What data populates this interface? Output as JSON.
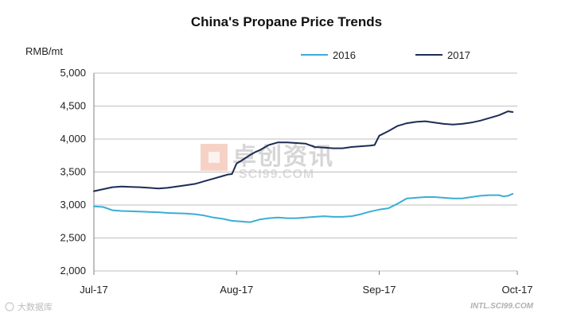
{
  "chart_data": {
    "type": "line",
    "title": "China's Propane Price Trends",
    "ylabel": "RMB/mt",
    "xlabel": "",
    "ylim": [
      2000,
      5000
    ],
    "yticks": [
      "2,000",
      "2,500",
      "3,000",
      "3,500",
      "4,000",
      "4,500",
      "5,000"
    ],
    "ytick_values": [
      2000,
      2500,
      3000,
      3500,
      4000,
      4500,
      5000
    ],
    "xticks": [
      "Jul-17",
      "Aug-17",
      "Sep-17",
      "Oct-17"
    ],
    "xtick_values": [
      0,
      31,
      62,
      92
    ],
    "xlim": [
      0,
      92
    ],
    "legend_position": "top",
    "grid": "horizontal",
    "series": [
      {
        "name": "2016",
        "color": "#3aaed6",
        "x": [
          0,
          2,
          4,
          6,
          8,
          10,
          12,
          14,
          16,
          18,
          20,
          22,
          24,
          26,
          28,
          30,
          32,
          34,
          36,
          38,
          40,
          42,
          44,
          46,
          48,
          50,
          52,
          54,
          56,
          58,
          60,
          62,
          64,
          66,
          68,
          70,
          72,
          74,
          76,
          78,
          80,
          82,
          84,
          86,
          88,
          89,
          90,
          91
        ],
        "values": [
          2980,
          2970,
          2920,
          2910,
          2905,
          2900,
          2895,
          2890,
          2880,
          2875,
          2870,
          2860,
          2840,
          2810,
          2790,
          2760,
          2750,
          2740,
          2780,
          2800,
          2810,
          2800,
          2800,
          2810,
          2820,
          2830,
          2820,
          2820,
          2830,
          2860,
          2900,
          2930,
          2950,
          3020,
          3100,
          3110,
          3120,
          3120,
          3110,
          3100,
          3100,
          3120,
          3140,
          3150,
          3150,
          3130,
          3140,
          3170
        ]
      },
      {
        "name": "2017",
        "color": "#1d2c53",
        "x": [
          0,
          2,
          4,
          6,
          8,
          10,
          12,
          14,
          16,
          18,
          20,
          22,
          24,
          26,
          28,
          29,
          30,
          31,
          32,
          34,
          35,
          36,
          38,
          40,
          42,
          44,
          46,
          48,
          50,
          52,
          54,
          56,
          58,
          60,
          61,
          62,
          64,
          66,
          68,
          70,
          72,
          74,
          76,
          78,
          80,
          82,
          84,
          86,
          88,
          90,
          91
        ],
        "values": [
          3210,
          3240,
          3270,
          3280,
          3275,
          3270,
          3260,
          3250,
          3260,
          3280,
          3300,
          3320,
          3360,
          3400,
          3440,
          3460,
          3470,
          3630,
          3670,
          3760,
          3800,
          3830,
          3910,
          3950,
          3950,
          3940,
          3930,
          3880,
          3870,
          3860,
          3860,
          3880,
          3890,
          3900,
          3910,
          4050,
          4120,
          4200,
          4240,
          4260,
          4270,
          4250,
          4230,
          4220,
          4230,
          4250,
          4280,
          4320,
          4360,
          4420,
          4410
        ]
      }
    ]
  },
  "watermark": {
    "cn_text": "卓创资讯",
    "en_text": "SCI99.COM",
    "source": "INTL.SCI99.COM",
    "badge": "大数据库"
  }
}
